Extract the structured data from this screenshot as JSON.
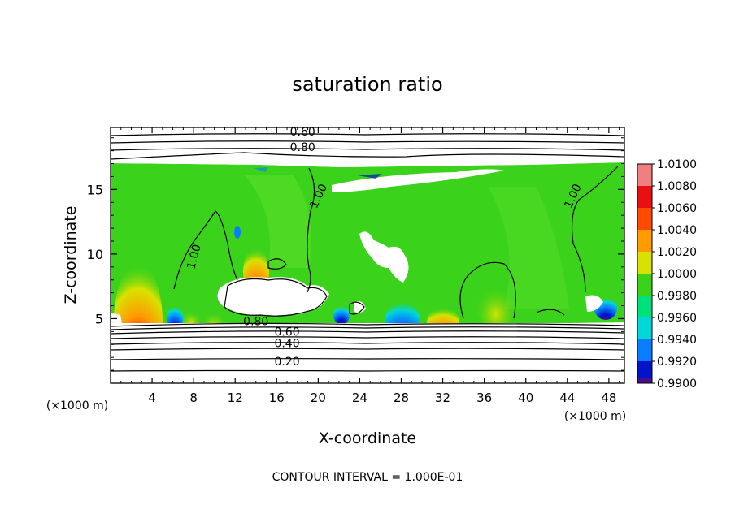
{
  "chart_data": {
    "type": "heatmap",
    "title": "saturation ratio",
    "xlabel": "X-coordinate",
    "ylabel": "Z-coordinate",
    "x_unit": "(×1000 m)",
    "footer": "CONTOUR INTERVAL = 1.000E-01",
    "xlim": [
      0,
      49.5
    ],
    "ylim": [
      0,
      19.8
    ],
    "x_ticks": [
      4,
      8,
      12,
      16,
      20,
      24,
      28,
      32,
      36,
      40,
      44,
      48
    ],
    "y_ticks": [
      5,
      10,
      15
    ],
    "colorbar": {
      "levels": [
        "1.0100",
        "1.0080",
        "1.0060",
        "1.0040",
        "1.0020",
        "1.0000",
        "0.9980",
        "0.9960",
        "0.9940",
        "0.9920",
        "0.9900"
      ],
      "colors": [
        "#f08080",
        "#e81010",
        "#ff4a00",
        "#ff9a00",
        "#d8e200",
        "#3ad21a",
        "#00e07a",
        "#00d8d8",
        "#0a7cff",
        "#0014c8",
        "#4a0c8e"
      ]
    },
    "contour_interval": 0.1,
    "contour_labels": [
      {
        "text": "0.60",
        "x": 18.5,
        "y": 19.5
      },
      {
        "text": "0.80",
        "x": 18.5,
        "y": 18.3
      },
      {
        "text": "1.00",
        "x": 8.0,
        "y": 9.8
      },
      {
        "text": "1.00",
        "x": 20.0,
        "y": 14.5
      },
      {
        "text": "1.00",
        "x": 44.5,
        "y": 14.5
      },
      {
        "text": "0.80",
        "x": 14.0,
        "y": 4.8
      },
      {
        "text": "0.60",
        "x": 17.0,
        "y": 4.0
      },
      {
        "text": "0.40",
        "x": 17.0,
        "y": 3.1
      },
      {
        "text": "0.20",
        "x": 17.0,
        "y": 1.7
      }
    ]
  }
}
